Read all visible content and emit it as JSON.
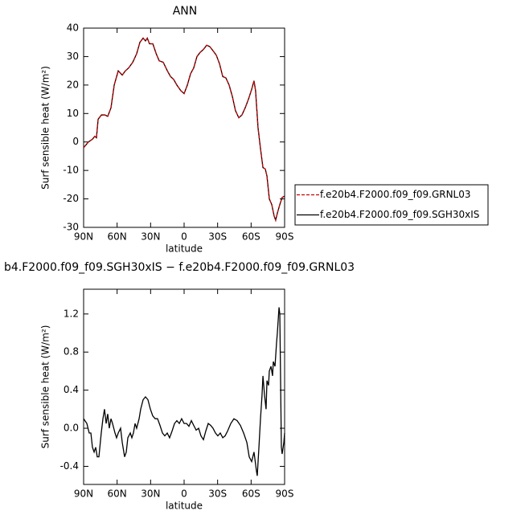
{
  "chart_data": [
    {
      "type": "line",
      "title": "ANN",
      "xlabel": "latitude",
      "ylabel": "Surf sensible heat (W/m²)",
      "xlim": [
        90,
        -90
      ],
      "xticks": [
        {
          "value": 90,
          "label": "90N"
        },
        {
          "value": 60,
          "label": "60N"
        },
        {
          "value": 30,
          "label": "30N"
        },
        0,
        {
          "value": -30,
          "label": "30S"
        },
        {
          "value": -60,
          "label": "60S"
        },
        {
          "value": -90,
          "label": "90S"
        }
      ],
      "ylim": [
        -30,
        40
      ],
      "yticks": [
        -30,
        -20,
        -10,
        0,
        10,
        20,
        30,
        40
      ],
      "legend": "right",
      "x": [
        90,
        85.7,
        82,
        80,
        78.5,
        77,
        74,
        71,
        68.4,
        65.5,
        62.6,
        59,
        55.4,
        52.6,
        49.7,
        46,
        42.5,
        39.6,
        36.7,
        34.6,
        33,
        31,
        28,
        25,
        22.3,
        18.7,
        15,
        12.2,
        9.4,
        6.5,
        2.9,
        0,
        -2.9,
        -5.8,
        -8.6,
        -11.5,
        -14.4,
        -17.3,
        -20.2,
        -23,
        -26,
        -28.8,
        -31.7,
        -34.6,
        -37.4,
        -40.3,
        -43.2,
        -46,
        -49,
        -51.8,
        -54.7,
        -57.6,
        -60.5,
        -62.6,
        -64,
        -66.2,
        -68.3,
        -70.6,
        -72.7,
        -74.2,
        -76.3,
        -78.5,
        -80.6,
        -82,
        -83.5,
        -85.7,
        -87.8,
        -90
      ],
      "series": [
        {
          "name": "f.e20b4.F2000.f09_f09.GRNL03",
          "color": "#cc0000",
          "linestyle": "dashed",
          "values": [
            -2,
            0,
            1,
            2,
            1.5,
            8,
            9.5,
            9.5,
            9,
            12,
            20,
            25,
            23.5,
            25,
            26,
            28,
            31,
            35,
            36.5,
            35.5,
            36.5,
            34.5,
            34.5,
            31,
            28.5,
            28,
            25,
            23,
            22,
            20,
            18,
            17,
            20,
            24,
            26,
            30,
            31.5,
            32.5,
            34,
            33.5,
            32,
            30.5,
            27.5,
            23,
            22.5,
            20,
            16,
            11,
            8.5,
            9.5,
            12,
            15,
            18.5,
            21.5,
            18,
            5,
            -2,
            -9,
            -9.5,
            -12,
            -20,
            -22,
            -26,
            -27.5,
            -25,
            -22,
            -19.5,
            -19
          ]
        },
        {
          "name": "f.e20b4.F2000.f09_f09.SGH30xIS",
          "color": "#000000",
          "linestyle": "solid",
          "values": [
            -2,
            0,
            1,
            2,
            1.5,
            8,
            9.5,
            9.5,
            9,
            12,
            20,
            25,
            23.5,
            25,
            26,
            28,
            31,
            35,
            36.5,
            35.5,
            36.5,
            34.5,
            34.5,
            31,
            28.5,
            28,
            25,
            23,
            22,
            20,
            18,
            17,
            20,
            24,
            26,
            30,
            31.5,
            32.5,
            34,
            33.5,
            32,
            30.5,
            27.5,
            23,
            22.5,
            20,
            16,
            11,
            8.5,
            9.5,
            12,
            15,
            18.5,
            21.5,
            18,
            5,
            -2,
            -9,
            -9.5,
            -12,
            -20,
            -22,
            -26,
            -27.5,
            -25,
            -22,
            -19.5,
            -19
          ]
        }
      ]
    },
    {
      "type": "line",
      "title": "b4.F2000.f09_f09.SGH30xIS − f.e20b4.F2000.f09_f09.GRNL03",
      "xlabel": "latitude",
      "ylabel": "Surf sensible heat (W/m²)",
      "xlim": [
        90,
        -90
      ],
      "xticks": [
        {
          "value": 90,
          "label": "90N"
        },
        {
          "value": 60,
          "label": "60N"
        },
        {
          "value": 30,
          "label": "30N"
        },
        0,
        {
          "value": -30,
          "label": "30S"
        },
        {
          "value": -60,
          "label": "60S"
        },
        {
          "value": -90,
          "label": "90S"
        }
      ],
      "ylim": [
        -0.59,
        1.46
      ],
      "yticks": [
        -0.4,
        {
          "value": 0,
          "label": "0.0"
        },
        0.4,
        0.8,
        1.2
      ],
      "x": [
        90,
        87.1,
        85,
        83.5,
        82.1,
        80.6,
        79.2,
        77.8,
        76.3,
        74.2,
        72.7,
        71.3,
        69.8,
        68.4,
        67,
        65.5,
        64.1,
        61.9,
        60.5,
        59,
        56.9,
        55.4,
        53.3,
        51.8,
        50.4,
        48.2,
        46.8,
        45.4,
        43.9,
        42.5,
        40.3,
        38.9,
        36.7,
        34.6,
        32.4,
        30.2,
        28.1,
        25.9,
        23.8,
        21.6,
        19.4,
        17.3,
        15.1,
        13,
        10.8,
        8.6,
        6.5,
        4.3,
        2.2,
        0,
        -2.2,
        -4.3,
        -6.5,
        -8.6,
        -10.8,
        -13,
        -15.1,
        -17.3,
        -19.4,
        -21.6,
        -23.8,
        -25.9,
        -28.1,
        -30.2,
        -32.4,
        -34.6,
        -36.7,
        -38.9,
        -41.8,
        -44.6,
        -47.5,
        -50.4,
        -53.3,
        -56.2,
        -58.3,
        -60.5,
        -62.6,
        -64.8,
        -65.5,
        -67,
        -68.4,
        -69.8,
        -70.6,
        -72,
        -73.4,
        -74.2,
        -75.6,
        -76.3,
        -77.8,
        -79.2,
        -79.9,
        -81.4,
        -82.8,
        -83.5,
        -85,
        -85.7,
        -87.1,
        -87.8,
        -89.3,
        -90
      ],
      "series": [
        {
          "color": "#000000",
          "linestyle": "solid",
          "values": [
            0.1,
            0.05,
            -0.05,
            -0.05,
            -0.2,
            -0.25,
            -0.2,
            -0.3,
            -0.3,
            -0.05,
            0.1,
            0.2,
            0.05,
            0.15,
            0,
            0.1,
            0.05,
            -0.05,
            -0.1,
            -0.05,
            0,
            -0.15,
            -0.3,
            -0.25,
            -0.1,
            -0.05,
            -0.1,
            -0.05,
            0.05,
            0,
            0.1,
            0.2,
            0.3,
            0.33,
            0.3,
            0.2,
            0.13,
            0.1,
            0.1,
            0.03,
            -0.05,
            -0.08,
            -0.05,
            -0.1,
            -0.03,
            0.05,
            0.08,
            0.05,
            0.1,
            0.05,
            0.05,
            0.02,
            0.08,
            0.03,
            -0.02,
            0,
            -0.08,
            -0.12,
            -0.03,
            0.05,
            0.03,
            0,
            -0.05,
            -0.08,
            -0.05,
            -0.1,
            -0.08,
            -0.03,
            0.05,
            0.1,
            0.08,
            0.03,
            -0.05,
            -0.15,
            -0.3,
            -0.35,
            -0.25,
            -0.45,
            -0.5,
            -0.2,
            0.1,
            0.35,
            0.55,
            0.35,
            0.2,
            0.5,
            0.45,
            0.6,
            0.65,
            0.55,
            0.7,
            0.65,
            0.9,
            1.0,
            1.27,
            1.2,
            -0.2,
            -0.27,
            -0.15,
            -0.05
          ]
        }
      ]
    }
  ]
}
